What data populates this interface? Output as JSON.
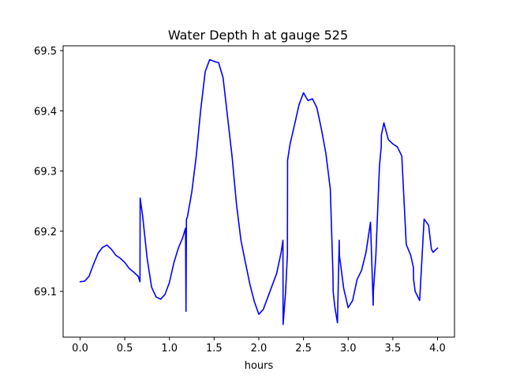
{
  "chart_data": {
    "type": "line",
    "title": "Water Depth h at gauge 525",
    "xlabel": "hours",
    "ylabel": "",
    "xlim": [
      -0.19,
      4.19
    ],
    "ylim": [
      69.024,
      69.508
    ],
    "xticks": [
      0.0,
      0.5,
      1.0,
      1.5,
      2.0,
      2.5,
      3.0,
      3.5,
      4.0
    ],
    "xtick_labels": [
      "0.0",
      "0.5",
      "1.0",
      "1.5",
      "2.0",
      "2.5",
      "3.0",
      "3.5",
      "4.0"
    ],
    "yticks": [
      69.1,
      69.2,
      69.3,
      69.4,
      69.5
    ],
    "ytick_labels": [
      "69.1",
      "69.2",
      "69.3",
      "69.4",
      "69.5"
    ],
    "grid": false,
    "series": [
      {
        "color": "#0000ff",
        "x": [
          0.0,
          0.05,
          0.1,
          0.15,
          0.2,
          0.25,
          0.3,
          0.35,
          0.4,
          0.45,
          0.5,
          0.55,
          0.6,
          0.65,
          0.67,
          0.672,
          0.7,
          0.75,
          0.8,
          0.85,
          0.9,
          0.95,
          1.0,
          1.05,
          1.1,
          1.15,
          1.18,
          1.185,
          1.19,
          1.2,
          1.25,
          1.3,
          1.35,
          1.4,
          1.45,
          1.5,
          1.55,
          1.6,
          1.65,
          1.7,
          1.75,
          1.8,
          1.85,
          1.9,
          1.95,
          2.0,
          2.05,
          2.1,
          2.15,
          2.2,
          2.25,
          2.27,
          2.272,
          2.3,
          2.32,
          2.322,
          2.35,
          2.4,
          2.45,
          2.5,
          2.55,
          2.6,
          2.65,
          2.7,
          2.75,
          2.8,
          2.83,
          2.832,
          2.85,
          2.88,
          2.9,
          2.902,
          2.95,
          3.0,
          3.05,
          3.1,
          3.15,
          3.2,
          3.25,
          3.28,
          3.282,
          3.31,
          3.35,
          3.37,
          3.372,
          3.4,
          3.45,
          3.5,
          3.55,
          3.6,
          3.65,
          3.7,
          3.73,
          3.732,
          3.75,
          3.8,
          3.85,
          3.9,
          3.93,
          3.932,
          3.95,
          4.0
        ],
        "y": [
          69.116,
          69.117,
          69.125,
          69.145,
          69.163,
          69.173,
          69.177,
          69.17,
          69.16,
          69.155,
          69.148,
          69.138,
          69.132,
          69.125,
          69.116,
          69.255,
          69.225,
          69.155,
          69.107,
          69.091,
          69.087,
          69.095,
          69.115,
          69.148,
          69.172,
          69.19,
          69.205,
          69.067,
          69.22,
          69.223,
          69.265,
          69.325,
          69.402,
          69.465,
          69.485,
          69.482,
          69.48,
          69.455,
          69.39,
          69.325,
          69.245,
          69.185,
          69.148,
          69.112,
          69.083,
          69.062,
          69.07,
          69.09,
          69.11,
          69.13,
          69.165,
          69.185,
          69.045,
          69.1,
          69.162,
          69.318,
          69.345,
          69.377,
          69.41,
          69.43,
          69.417,
          69.42,
          69.405,
          69.37,
          69.33,
          69.27,
          69.128,
          69.1,
          69.075,
          69.048,
          69.185,
          69.16,
          69.105,
          69.073,
          69.085,
          69.12,
          69.135,
          69.165,
          69.215,
          69.077,
          69.1,
          69.16,
          69.308,
          69.34,
          69.36,
          69.38,
          69.352,
          69.345,
          69.34,
          69.325,
          69.178,
          69.16,
          69.14,
          69.12,
          69.1,
          69.085,
          69.22,
          69.21,
          69.172,
          69.17,
          69.165,
          69.172
        ]
      }
    ]
  }
}
